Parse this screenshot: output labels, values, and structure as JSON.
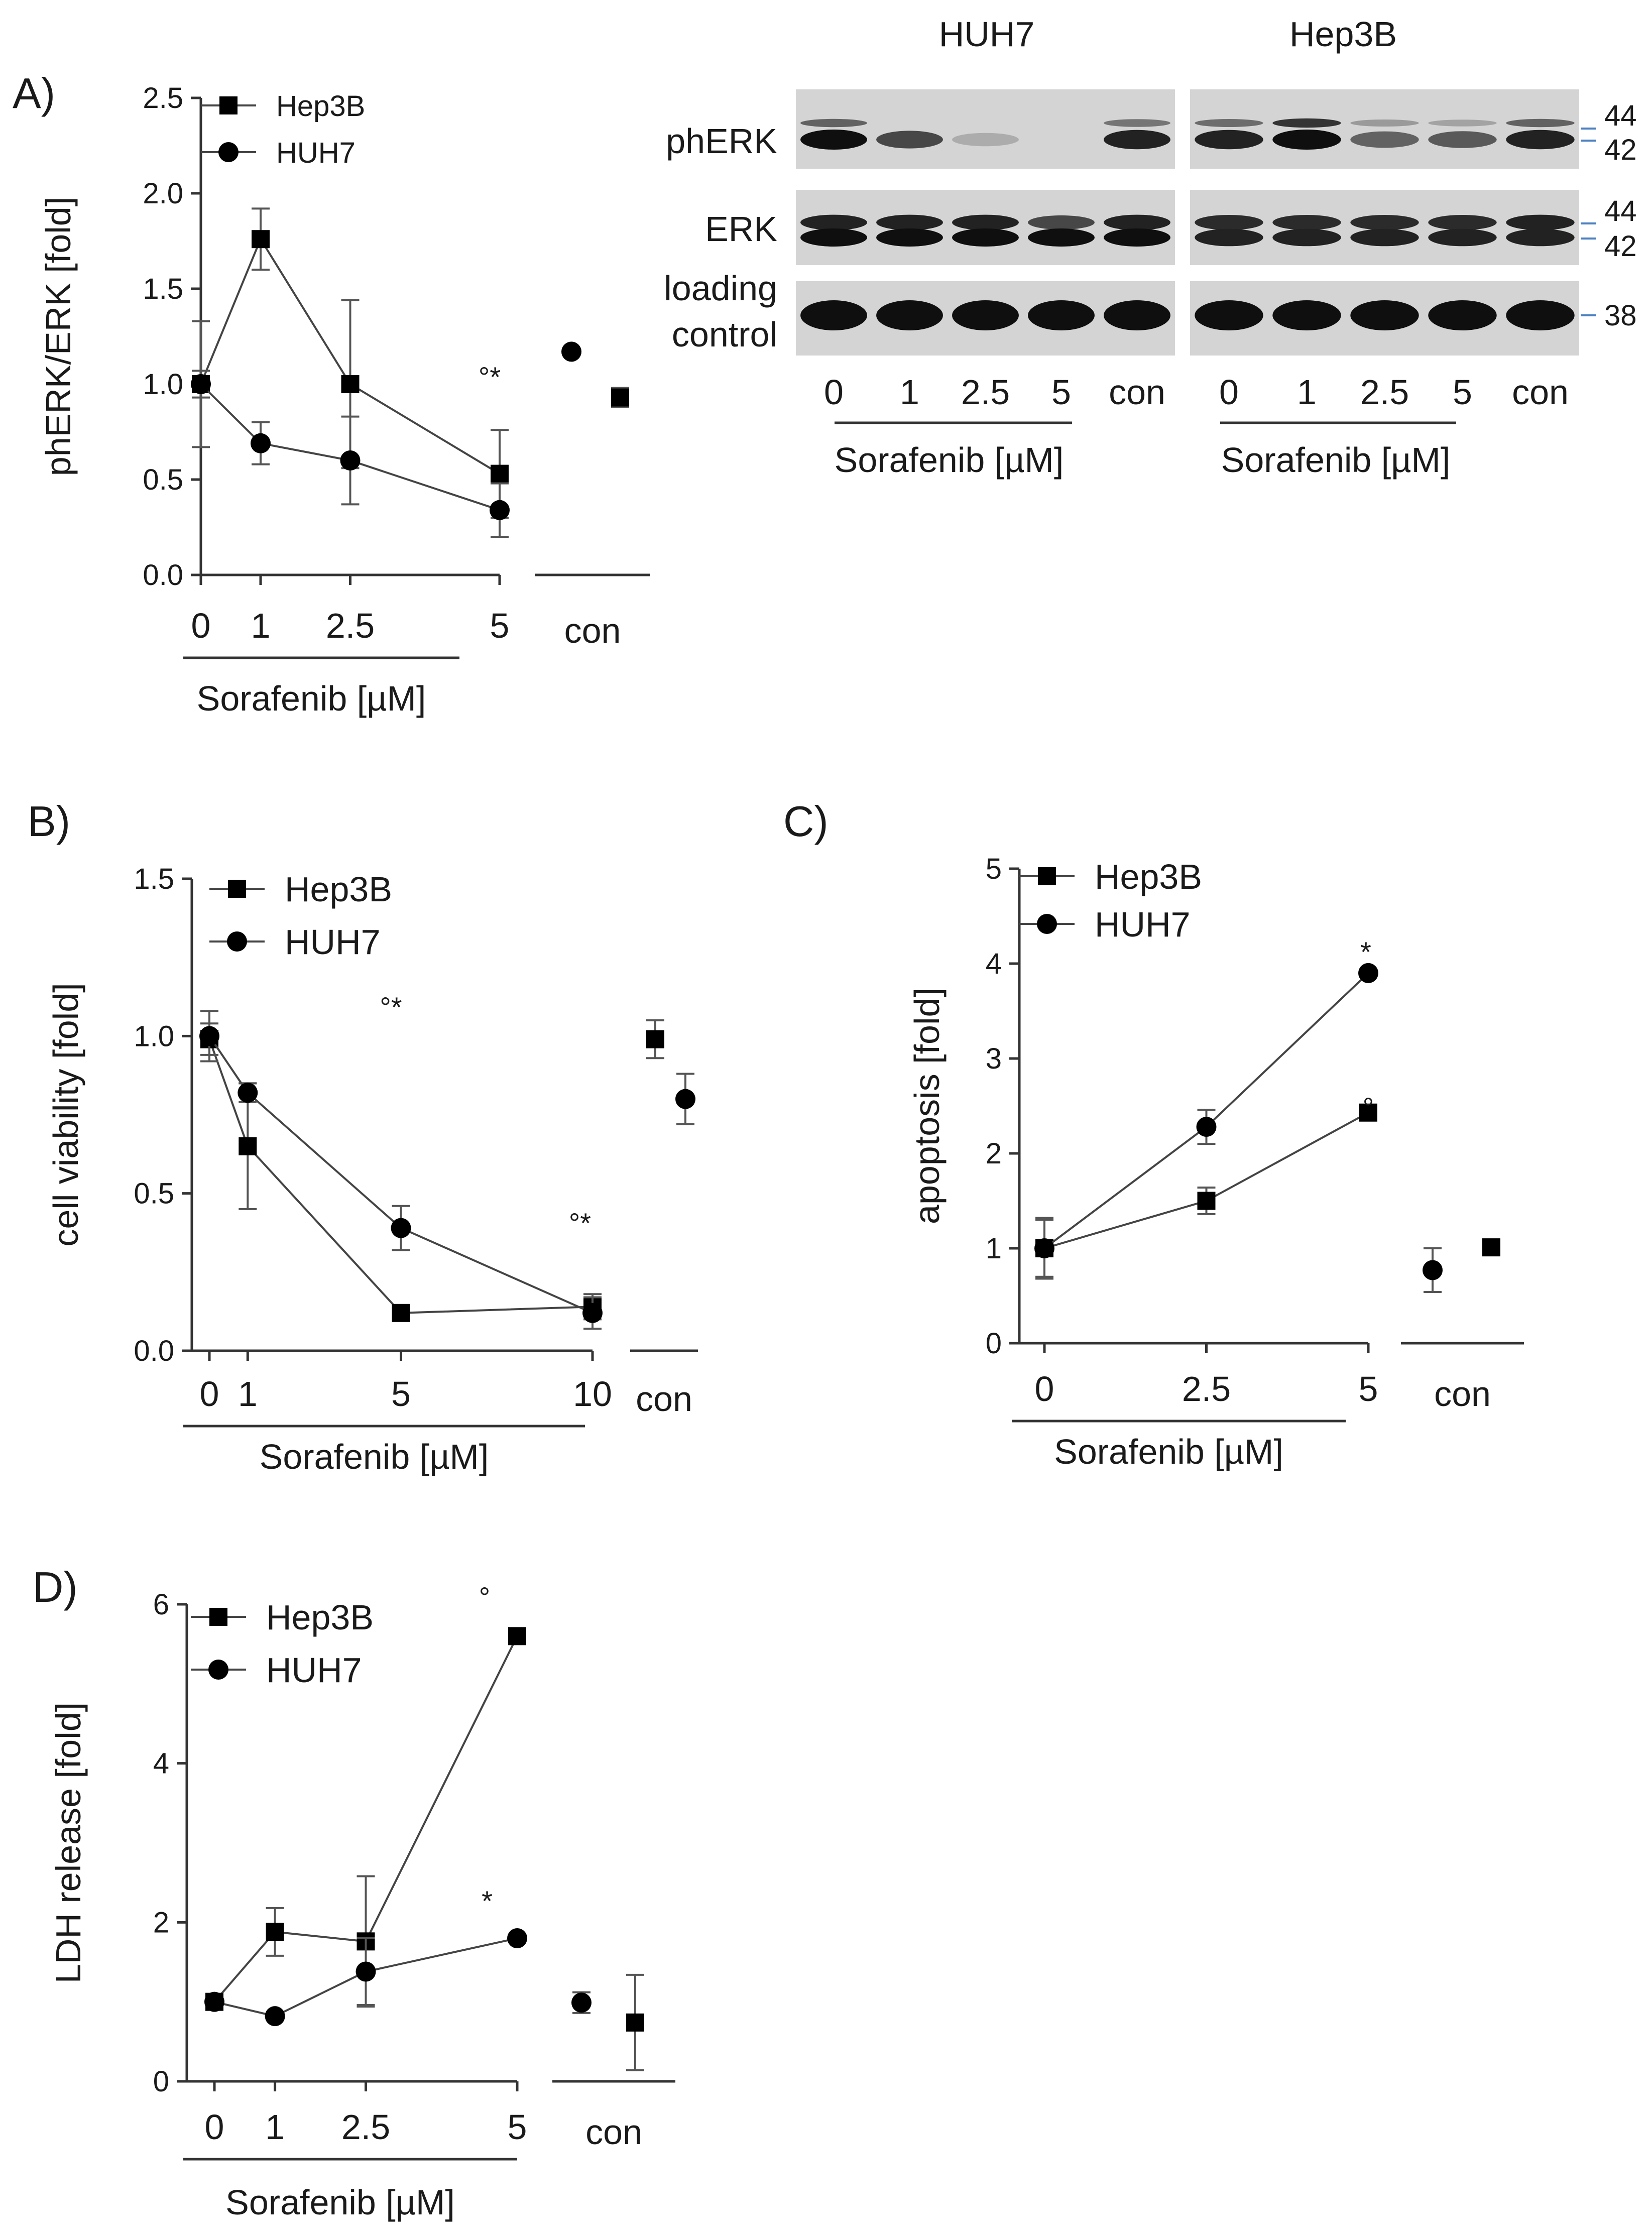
{
  "figure": {
    "panels": {
      "a": "A)",
      "b": "B)",
      "c": "C)",
      "d": "D)"
    },
    "legend": {
      "hep3b": "Hep3B",
      "huh7": "HUH7"
    },
    "xlabel": "Sorafenib [µM]",
    "control_label": "con"
  },
  "western_blot": {
    "cell_lines": [
      "HUH7",
      "Hep3B"
    ],
    "rows": [
      {
        "name": "phERK",
        "mw": [
          "44",
          "42"
        ]
      },
      {
        "name": "ERK",
        "mw": [
          "44",
          "42"
        ]
      },
      {
        "name": "loading control",
        "name_lines": [
          "loading",
          "control"
        ],
        "mw": [
          "38"
        ]
      }
    ],
    "lanes": [
      "0",
      "1",
      "2.5",
      "5",
      "con"
    ],
    "xlabel": "Sorafenib [µM]",
    "intensity": {
      "HUH7": {
        "phERK_44": [
          0.55,
          0.0,
          0.0,
          0.0,
          0.45
        ],
        "phERK_42": [
          1.0,
          0.7,
          0.15,
          0.0,
          0.9
        ],
        "ERK_44": [
          0.9,
          0.9,
          0.9,
          0.7,
          0.9
        ],
        "ERK_42": [
          1.0,
          1.0,
          1.0,
          1.0,
          1.0
        ],
        "loading": [
          1.0,
          1.0,
          1.0,
          1.0,
          1.0
        ]
      },
      "Hep3B": {
        "phERK_44": [
          0.5,
          0.8,
          0.25,
          0.2,
          0.55
        ],
        "phERK_42": [
          0.9,
          1.0,
          0.55,
          0.6,
          0.9
        ],
        "ERK_44": [
          0.85,
          0.85,
          0.85,
          0.85,
          0.9
        ],
        "ERK_42": [
          0.9,
          0.9,
          0.9,
          0.9,
          0.9
        ],
        "loading": [
          1.0,
          1.0,
          1.0,
          1.0,
          1.0
        ]
      }
    }
  },
  "chart_data": [
    {
      "id": "A",
      "type": "line",
      "ylabel": "phERK/ERK [fold]",
      "xlabel": "Sorafenib [µM]",
      "x": [
        0,
        1,
        2.5,
        5
      ],
      "x_tick_labels": [
        "0",
        "1",
        "2.5",
        "5"
      ],
      "ylim": [
        0,
        2.5
      ],
      "yticks": [
        "0.0",
        "0.5",
        "1.0",
        "1.5",
        "2.0",
        "2.5"
      ],
      "series": [
        {
          "name": "Hep3B",
          "marker": "square",
          "values": [
            1.0,
            1.76,
            1.0,
            0.53
          ],
          "err": [
            0.07,
            0.16,
            0.44,
            0.23
          ],
          "control": 0.93,
          "control_err": 0.05
        },
        {
          "name": "HUH7",
          "marker": "circle",
          "values": [
            1.0,
            0.69,
            0.6,
            0.34
          ],
          "err": [
            0.33,
            0.11,
            0.23,
            0.14
          ],
          "control": 1.17,
          "control_err": 0
        }
      ],
      "annotations": [
        {
          "x": 5,
          "text": "°*"
        }
      ]
    },
    {
      "id": "B",
      "type": "line",
      "ylabel": "cell viability [fold]",
      "xlabel": "Sorafenib [µM]",
      "x": [
        0,
        1,
        5,
        10
      ],
      "x_tick_labels": [
        "0",
        "1",
        "5",
        "10"
      ],
      "ylim": [
        0,
        1.5
      ],
      "yticks": [
        "0.0",
        "0.5",
        "1.0",
        "1.5"
      ],
      "series": [
        {
          "name": "Hep3B",
          "marker": "square",
          "values": [
            0.99,
            0.65,
            0.12,
            0.14
          ],
          "err": [
            0.05,
            0.2,
            0.02,
            0.04
          ],
          "control": 0.99,
          "control_err": 0.06
        },
        {
          "name": "HUH7",
          "marker": "circle",
          "values": [
            1.0,
            0.82,
            0.39,
            0.12
          ],
          "err": [
            0.08,
            0.03,
            0.07,
            0.05
          ],
          "control": 0.8,
          "control_err": 0.08
        }
      ],
      "annotations": [
        {
          "x": 5,
          "text": "°*"
        },
        {
          "x": 10,
          "text": "°*"
        }
      ]
    },
    {
      "id": "C",
      "type": "line",
      "ylabel": "apoptosis [fold]",
      "xlabel": "Sorafenib [µM]",
      "x": [
        0,
        2.5,
        5
      ],
      "x_tick_labels": [
        "0",
        "2.5",
        "5"
      ],
      "ylim": [
        0,
        5
      ],
      "yticks": [
        "0",
        "1",
        "2",
        "3",
        "4",
        "5"
      ],
      "series": [
        {
          "name": "Hep3B",
          "marker": "square",
          "values": [
            1.0,
            1.5,
            2.43
          ],
          "err": [
            0.3,
            0.14,
            0.05
          ],
          "control": 1.01,
          "control_err": 0
        },
        {
          "name": "HUH7",
          "marker": "circle",
          "values": [
            1.0,
            2.28,
            3.9
          ],
          "err": [
            0.32,
            0.18,
            0.03
          ],
          "control": 0.77,
          "control_err": 0.23
        }
      ],
      "annotations": [
        {
          "series": "HUH7",
          "text": "*"
        },
        {
          "series": "Hep3B",
          "text": "°"
        }
      ]
    },
    {
      "id": "D",
      "type": "line",
      "ylabel": "LDH release [fold]",
      "xlabel": "Sorafenib [µM]",
      "x": [
        0,
        1,
        2.5,
        5
      ],
      "x_tick_labels": [
        "0",
        "1",
        "2.5",
        "5"
      ],
      "ylim": [
        0,
        6
      ],
      "yticks": [
        "0",
        "2",
        "4",
        "6"
      ],
      "series": [
        {
          "name": "Hep3B",
          "marker": "square",
          "values": [
            1.0,
            1.88,
            1.76,
            5.6
          ],
          "err": [
            0.03,
            0.3,
            0.82,
            0.05
          ],
          "control": 0.74,
          "control_err": 0.6
        },
        {
          "name": "HUH7",
          "marker": "circle",
          "values": [
            1.0,
            0.82,
            1.38,
            1.8
          ],
          "err": [
            0.03,
            0.03,
            0.42,
            0.03
          ],
          "control": 0.99,
          "control_err": 0.13
        }
      ],
      "annotations": [
        {
          "series": "Hep3B",
          "text": "°"
        },
        {
          "series": "HUH7",
          "text": "*"
        }
      ]
    }
  ]
}
